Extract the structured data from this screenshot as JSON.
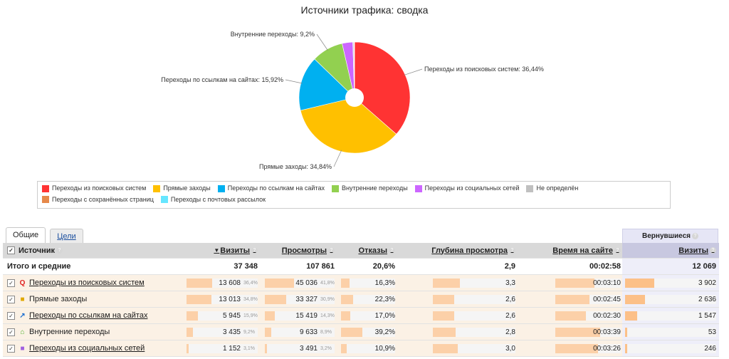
{
  "title": "Источники трафика: сводка",
  "chart_data": {
    "type": "pie",
    "categories": [
      "Переходы из поисковых систем",
      "Прямые заходы",
      "Переходы по ссылкам на сайтах",
      "Внутренние переходы",
      "Переходы из социальных сетей",
      "Не определён",
      "Переходы с сохранённых страниц",
      "Переходы с почтовых рассылок"
    ],
    "values": [
      36.44,
      34.84,
      15.92,
      9.2,
      3.1,
      0.3,
      0.1,
      0.1
    ],
    "colors": [
      "#ff3333",
      "#ffc000",
      "#00b0f0",
      "#92d050",
      "#cc66ff",
      "#c0c0c0",
      "#e6894a",
      "#66e6ff"
    ],
    "callouts": [
      {
        "index": 0,
        "label": "Переходы из поисковых систем: 36,44%"
      },
      {
        "index": 1,
        "label": "Прямые заходы: 34,84%"
      },
      {
        "index": 2,
        "label": "Переходы по ссылкам на сайтах: 15,92%"
      },
      {
        "index": 3,
        "label": "Внутренние переходы: 9,2%"
      }
    ]
  },
  "tabs": [
    {
      "label": "Общие",
      "active": true
    },
    {
      "label": "Цели",
      "active": false
    }
  ],
  "returning_header": "Вернувшиеся",
  "columns": {
    "source": "Источник",
    "visits": "Визиты",
    "views": "Просмотры",
    "bounces": "Отказы",
    "depth": "Глубина просмотра",
    "time": "Время на сайте",
    "ret_visits": "Визиты"
  },
  "sort_marker": "▼",
  "help_glyph": "?",
  "check_glyph": "✓",
  "total": {
    "label": "Итого и средние",
    "visits": "37 348",
    "views": "107 861",
    "bounces": "20,6%",
    "depth": "2,9",
    "time": "00:02:58",
    "ret_visits": "12 069"
  },
  "rows": [
    {
      "icon": "search-icon",
      "glyph": "Q",
      "color": "#e02020",
      "name": "Переходы из поисковых систем",
      "link": true,
      "visits": "13 608",
      "visits_pct": "36,4%",
      "visits_share": 0.364,
      "views": "45 036",
      "views_pct": "41,8%",
      "views_share": 0.418,
      "bounces": "16,3%",
      "bounces_share": 0.163,
      "depth": "3,3",
      "depth_share": 0.33,
      "time": "00:03:10",
      "time_share": 0.6,
      "ret": "3 902",
      "ret_share": 0.32
    },
    {
      "icon": "direct-icon",
      "glyph": "■",
      "color": "#e0a800",
      "name": "Прямые заходы",
      "link": false,
      "visits": "13 013",
      "visits_pct": "34,8%",
      "visits_share": 0.348,
      "views": "33 327",
      "views_pct": "30,9%",
      "views_share": 0.309,
      "bounces": "22,3%",
      "bounces_share": 0.223,
      "depth": "2,6",
      "depth_share": 0.26,
      "time": "00:02:45",
      "time_share": 0.52,
      "ret": "2 636",
      "ret_share": 0.22
    },
    {
      "icon": "link-icon",
      "glyph": "↗",
      "color": "#1e6fd0",
      "name": "Переходы по ссылкам на сайтах",
      "link": true,
      "visits": "5 945",
      "visits_pct": "15,9%",
      "visits_share": 0.159,
      "views": "15 419",
      "views_pct": "14,3%",
      "views_share": 0.143,
      "bounces": "17,0%",
      "bounces_share": 0.17,
      "depth": "2,6",
      "depth_share": 0.26,
      "time": "00:02:30",
      "time_share": 0.47,
      "ret": "1 547",
      "ret_share": 0.13
    },
    {
      "icon": "home-icon",
      "glyph": "⌂",
      "color": "#4caf2a",
      "name": "Внутренние переходы",
      "link": false,
      "visits": "3 435",
      "visits_pct": "9,2%",
      "visits_share": 0.092,
      "views": "9 633",
      "views_pct": "8,9%",
      "views_share": 0.089,
      "bounces": "39,2%",
      "bounces_share": 0.392,
      "depth": "2,8",
      "depth_share": 0.28,
      "time": "00:03:39",
      "time_share": 0.69,
      "ret": "53",
      "ret_share": 0.01
    },
    {
      "icon": "social-icon",
      "glyph": "■",
      "color": "#a060e0",
      "name": "Переходы из социальных сетей",
      "link": true,
      "visits": "1 152",
      "visits_pct": "3,1%",
      "visits_share": 0.031,
      "views": "3 491",
      "views_pct": "3,2%",
      "views_share": 0.032,
      "bounces": "10,9%",
      "bounces_share": 0.109,
      "depth": "3,0",
      "depth_share": 0.3,
      "time": "00:03:26",
      "time_share": 0.65,
      "ret": "246",
      "ret_share": 0.02
    }
  ]
}
